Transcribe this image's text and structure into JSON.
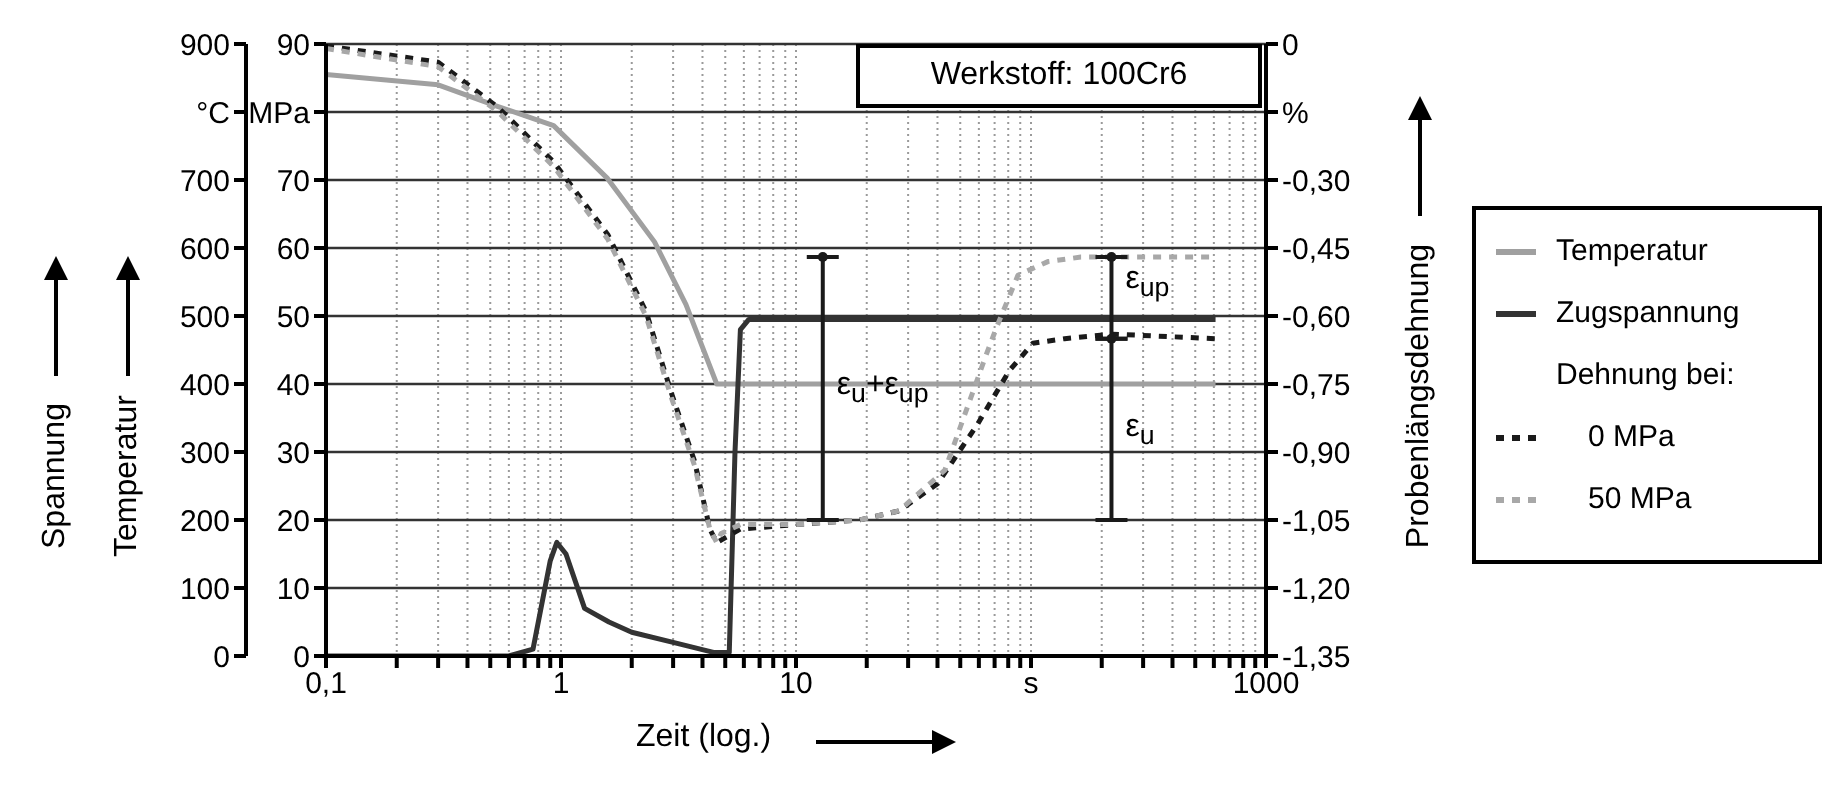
{
  "chart_data": {
    "type": "line",
    "xlabel": "Zeit (log.)",
    "ylabel": "Spannung",
    "y3label": "Temperatur",
    "y2label": "Probenlängsdehnung",
    "legend_title": "Dehnung bei:",
    "annotations": [
      "Werkstoff: 100Cr6",
      "ε$_{u}$+ε$_{up}$",
      "ε$_{up}$",
      "ε$_{u}$"
    ],
    "log": "x",
    "grid": true,
    "legend": "right",
    "marker": "none",
    "xlim": [
      0.1,
      1000
    ],
    "xticks": [
      {
        "value": 0.1,
        "label": "0,1"
      },
      {
        "value": 0.2,
        "label": null
      },
      {
        "value": 0.3,
        "label": null
      },
      {
        "value": 0.4,
        "label": null
      },
      {
        "value": 0.5,
        "label": null
      },
      {
        "value": 0.6,
        "label": null
      },
      {
        "value": 0.7,
        "label": null
      },
      {
        "value": 0.8,
        "label": null
      },
      {
        "value": 0.9,
        "label": null
      },
      1,
      {
        "value": 2,
        "label": null
      },
      {
        "value": 3,
        "label": null
      },
      {
        "value": 4,
        "label": null
      },
      {
        "value": 5,
        "label": null
      },
      {
        "value": 6,
        "label": null
      },
      {
        "value": 7,
        "label": null
      },
      {
        "value": 8,
        "label": null
      },
      {
        "value": 9,
        "label": null
      },
      10,
      {
        "value": 20,
        "label": null
      },
      {
        "value": 30,
        "label": null
      },
      {
        "value": 40,
        "label": null
      },
      {
        "value": 50,
        "label": null
      },
      {
        "value": 60,
        "label": null
      },
      {
        "value": 70,
        "label": null
      },
      {
        "value": 80,
        "label": null
      },
      {
        "value": 90,
        "label": null
      },
      {
        "value": 100,
        "label": "s"
      },
      {
        "value": 200,
        "label": null
      },
      {
        "value": 300,
        "label": null
      },
      {
        "value": 400,
        "label": null
      },
      {
        "value": 500,
        "label": null
      },
      {
        "value": 600,
        "label": null
      },
      {
        "value": 700,
        "label": null
      },
      {
        "value": 800,
        "label": null
      },
      {
        "value": 900,
        "label": null
      },
      1000
    ],
    "ylim": [
      0,
      90
    ],
    "yticks": [
      0,
      10,
      20,
      30,
      40,
      50,
      60,
      70,
      {
        "value": 80,
        "label": "MPa"
      },
      90
    ],
    "y3lim": [
      0,
      900
    ],
    "y3ticks": [
      0,
      100,
      200,
      300,
      400,
      500,
      600,
      700,
      {
        "value": 800,
        "label": "°C"
      },
      900
    ],
    "y2lim": [
      -1.35,
      0
    ],
    "y2ticks": [
      {
        "value": -1.35,
        "label": "-1,35"
      },
      {
        "value": -1.2,
        "label": "-1,20"
      },
      {
        "value": -1.05,
        "label": "-1,05"
      },
      {
        "value": -0.9,
        "label": "-0,90"
      },
      {
        "value": -0.75,
        "label": "-0,75"
      },
      {
        "value": -0.6,
        "label": "-0,60"
      },
      {
        "value": -0.45,
        "label": "-0,45"
      },
      {
        "value": -0.3,
        "label": "-0,30"
      },
      {
        "value": -0.15,
        "label": "%"
      },
      0
    ],
    "series": [
      {
        "name": "Temperatur",
        "color": "#a0a0a0",
        "axis": "y3",
        "line_style": "solid",
        "x": [
          0.1,
          0.3,
          0.54,
          0.93,
          1.58,
          2.5,
          3.4,
          4.6,
          610
        ],
        "values": [
          855,
          840,
          808,
          780,
          702,
          609,
          517,
          400,
          400
        ]
      },
      {
        "name": "Zugspannung",
        "color": "#333333",
        "axis": "y",
        "line_style": "solid",
        "x": [
          0.1,
          0.6,
          0.76,
          0.9,
          0.96,
          1.05,
          1.26,
          1.6,
          2,
          3,
          4.5,
          5.2,
          5.5,
          5.8,
          6.3,
          610
        ],
        "values": [
          0,
          0,
          1,
          14,
          16.7,
          15,
          7,
          5,
          3.5,
          2,
          0.5,
          0.5,
          30,
          48,
          49.5,
          49.5
        ]
      },
      {
        "name": "0 MPa",
        "color": "#1a1a1a",
        "axis": "y2",
        "line_style": "dashed",
        "x": [
          0.1,
          0.3,
          0.54,
          0.93,
          1.58,
          2.3,
          2.95,
          3.7,
          4.3,
          4.6,
          5.8,
          10,
          18.6,
          27.4,
          40,
          59,
          81,
          102,
          139,
          222,
          610
        ],
        "values": [
          -0.004,
          -0.04,
          -0.14,
          -0.26,
          -0.42,
          -0.59,
          -0.77,
          -0.92,
          -1.07,
          -1.1,
          -1.07,
          -1.06,
          -1.05,
          -1.03,
          -0.97,
          -0.84,
          -0.72,
          -0.66,
          -0.65,
          -0.64,
          -0.65
        ]
      },
      {
        "name": "50 MPa",
        "color": "#a8a8a8",
        "axis": "y2",
        "line_style": "dashed",
        "x": [
          0.1,
          0.3,
          0.54,
          0.93,
          1.58,
          2.3,
          2.95,
          3.7,
          4.3,
          4.6,
          4.8,
          5.8,
          10,
          18.6,
          27.4,
          43,
          64,
          72,
          88,
          118,
          163,
          610
        ],
        "values": [
          -0.01,
          -0.05,
          -0.15,
          -0.27,
          -0.43,
          -0.6,
          -0.78,
          -0.93,
          -1.07,
          -1.1,
          -1.08,
          -1.06,
          -1.06,
          -1.05,
          -1.03,
          -0.94,
          -0.69,
          -0.62,
          -0.51,
          -0.48,
          -0.47,
          -0.47
        ]
      },
      {
        "type": "scatter",
        "color": "#1a1a1a",
        "axis": "y2",
        "marker": "circle",
        "x": [
          13,
          220,
          220
        ],
        "values": [
          -0.47,
          -0.47,
          -0.65
        ],
        "errors": [
          [
            -1.05,
            -0.47
          ],
          [
            -0.65,
            -0.47
          ],
          [
            -1.05,
            -0.65
          ]
        ]
      }
    ]
  }
}
